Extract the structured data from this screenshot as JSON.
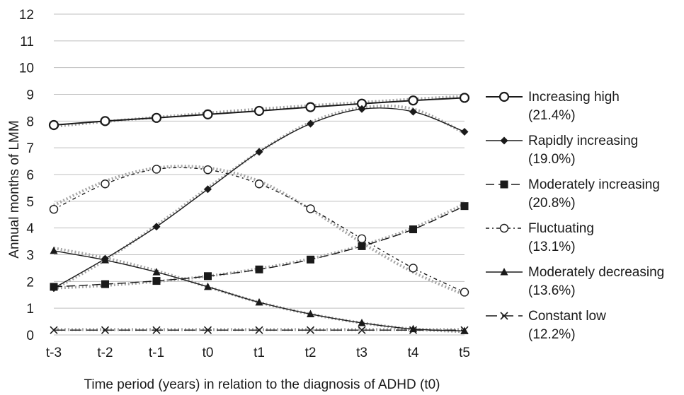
{
  "chart_data": {
    "type": "line",
    "xlabel": "Time period (years) in relation to the diagnosis of ADHD (t0)",
    "ylabel": "Annual months of LMM",
    "ylim": [
      0,
      12
    ],
    "yticks": [
      "0",
      "1",
      "2",
      "3",
      "4",
      "5",
      "6",
      "7",
      "8",
      "9",
      "10",
      "11",
      "12"
    ],
    "categories": [
      "t-3",
      "t-2",
      "t-1",
      "t0",
      "t1",
      "t2",
      "t3",
      "t4",
      "t5"
    ],
    "grid": true,
    "legend_position": "right",
    "series": [
      {
        "name": "Increasing high",
        "share": "(21.4%)",
        "marker": "open-circle",
        "line": "solid",
        "values": [
          7.85,
          8.0,
          8.12,
          8.25,
          8.38,
          8.52,
          8.65,
          8.77,
          8.87
        ],
        "fit": [
          7.8,
          7.98,
          8.14,
          8.3,
          8.45,
          8.58,
          8.7,
          8.82,
          8.93
        ]
      },
      {
        "name": "Rapidly increasing",
        "share": "(19.0%)",
        "marker": "diamond",
        "line": "solid",
        "values": [
          1.75,
          2.85,
          4.05,
          5.45,
          6.85,
          7.9,
          8.45,
          8.35,
          7.6
        ],
        "fit": [
          1.7,
          2.8,
          4.1,
          5.5,
          6.85,
          7.95,
          8.5,
          8.45,
          7.55
        ]
      },
      {
        "name": "Moderately increasing",
        "share": "(20.8%)",
        "marker": "filled-square",
        "line": "dashed",
        "values": [
          1.8,
          1.9,
          2.02,
          2.2,
          2.45,
          2.82,
          3.32,
          3.95,
          4.82
        ],
        "fit": [
          1.75,
          1.85,
          2.0,
          2.2,
          2.48,
          2.85,
          3.35,
          4.0,
          4.9
        ]
      },
      {
        "name": "Fluctuating",
        "share": "(13.1%)",
        "marker": "open-circle-small",
        "line": "dash-dot",
        "values": [
          4.7,
          5.65,
          6.2,
          6.18,
          5.65,
          4.72,
          3.6,
          2.5,
          1.6
        ],
        "fit": [
          4.85,
          5.75,
          6.25,
          6.25,
          5.75,
          4.7,
          3.45,
          2.35,
          1.5
        ]
      },
      {
        "name": "Moderately decreasing",
        "share": "(13.6%)",
        "marker": "triangle",
        "line": "solid",
        "values": [
          3.15,
          2.8,
          2.35,
          1.8,
          1.22,
          0.78,
          0.45,
          0.22,
          0.15
        ],
        "fit": [
          3.25,
          2.88,
          2.4,
          1.8,
          1.22,
          0.78,
          0.45,
          0.22,
          0.12
        ]
      },
      {
        "name": "Constant low",
        "share": "(12.2%)",
        "marker": "x",
        "line": "long-dash",
        "values": [
          0.18,
          0.18,
          0.18,
          0.18,
          0.18,
          0.18,
          0.18,
          0.18,
          0.18
        ],
        "fit": [
          0.2,
          0.2,
          0.2,
          0.2,
          0.2,
          0.2,
          0.2,
          0.2,
          0.2
        ]
      }
    ],
    "colors": {
      "line": "#1a1a1a",
      "fit": "#a6a6a6",
      "grid": "#bfbfbf"
    }
  }
}
